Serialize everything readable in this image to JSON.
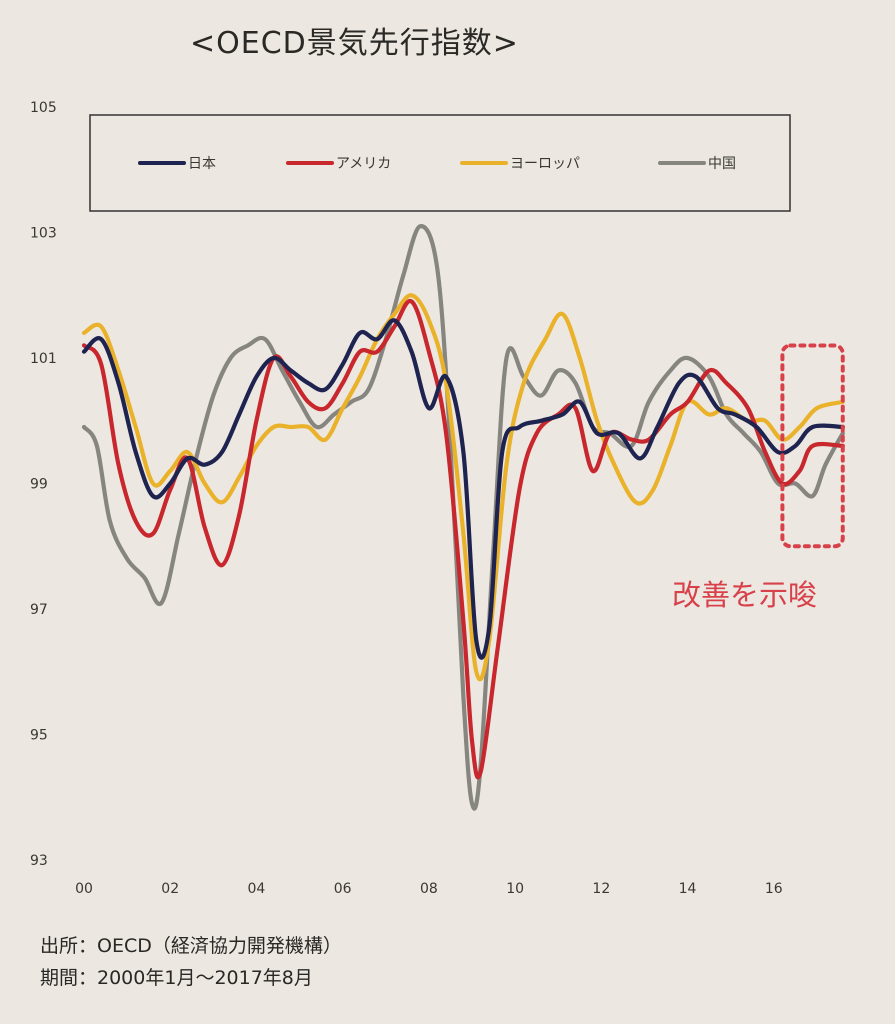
{
  "chart_data": {
    "type": "line",
    "title": "<OECD景気先行指数>",
    "xlabel": "",
    "ylabel": "",
    "xlim": [
      2000,
      2018
    ],
    "ylim": [
      93,
      105
    ],
    "yticks": [
      "105",
      "103",
      "101",
      "99",
      "97",
      "95",
      "93"
    ],
    "ytick_values": [
      105,
      103,
      101,
      99,
      97,
      95,
      93
    ],
    "xticks": [
      "00",
      "02",
      "04",
      "06",
      "08",
      "10",
      "12",
      "14",
      "16"
    ],
    "xtick_values": [
      2000,
      2002,
      2004,
      2006,
      2008,
      2010,
      2012,
      2014,
      2016
    ],
    "grid": false,
    "legend_position": "top",
    "series": [
      {
        "name": "日本",
        "color": "#1e2350",
        "points": [
          [
            2000.0,
            101.1
          ],
          [
            2000.4,
            101.3
          ],
          [
            2000.8,
            100.6
          ],
          [
            2001.2,
            99.5
          ],
          [
            2001.6,
            98.8
          ],
          [
            2002.0,
            99.0
          ],
          [
            2002.4,
            99.4
          ],
          [
            2002.8,
            99.3
          ],
          [
            2003.2,
            99.5
          ],
          [
            2003.6,
            100.1
          ],
          [
            2004.0,
            100.7
          ],
          [
            2004.4,
            101.0
          ],
          [
            2004.8,
            100.8
          ],
          [
            2005.2,
            100.6
          ],
          [
            2005.6,
            100.5
          ],
          [
            2006.0,
            100.9
          ],
          [
            2006.4,
            101.4
          ],
          [
            2006.8,
            101.3
          ],
          [
            2007.2,
            101.6
          ],
          [
            2007.6,
            101.1
          ],
          [
            2008.0,
            100.2
          ],
          [
            2008.4,
            100.7
          ],
          [
            2008.8,
            99.5
          ],
          [
            2009.1,
            96.5
          ],
          [
            2009.4,
            96.7
          ],
          [
            2009.7,
            99.5
          ],
          [
            2010.1,
            99.9
          ],
          [
            2010.6,
            100.0
          ],
          [
            2011.1,
            100.1
          ],
          [
            2011.5,
            100.3
          ],
          [
            2011.9,
            99.8
          ],
          [
            2012.4,
            99.8
          ],
          [
            2012.9,
            99.4
          ],
          [
            2013.3,
            99.9
          ],
          [
            2013.8,
            100.6
          ],
          [
            2014.2,
            100.7
          ],
          [
            2014.7,
            100.2
          ],
          [
            2015.1,
            100.1
          ],
          [
            2015.6,
            99.9
          ],
          [
            2016.1,
            99.5
          ],
          [
            2016.5,
            99.6
          ],
          [
            2016.9,
            99.9
          ],
          [
            2017.6,
            99.9
          ]
        ]
      },
      {
        "name": "アメリカ",
        "color": "#c8282d",
        "points": [
          [
            2000.0,
            101.2
          ],
          [
            2000.4,
            100.9
          ],
          [
            2000.8,
            99.3
          ],
          [
            2001.2,
            98.4
          ],
          [
            2001.6,
            98.2
          ],
          [
            2002.0,
            98.9
          ],
          [
            2002.4,
            99.4
          ],
          [
            2002.8,
            98.3
          ],
          [
            2003.2,
            97.7
          ],
          [
            2003.6,
            98.5
          ],
          [
            2004.0,
            100.0
          ],
          [
            2004.4,
            101.0
          ],
          [
            2004.8,
            100.7
          ],
          [
            2005.2,
            100.3
          ],
          [
            2005.6,
            100.2
          ],
          [
            2006.0,
            100.6
          ],
          [
            2006.4,
            101.1
          ],
          [
            2006.8,
            101.1
          ],
          [
            2007.2,
            101.5
          ],
          [
            2007.6,
            101.9
          ],
          [
            2008.0,
            101.1
          ],
          [
            2008.4,
            99.8
          ],
          [
            2008.8,
            96.8
          ],
          [
            2009.0,
            94.9
          ],
          [
            2009.2,
            94.4
          ],
          [
            2009.6,
            96.4
          ],
          [
            2010.1,
            98.9
          ],
          [
            2010.5,
            99.8
          ],
          [
            2011.0,
            100.1
          ],
          [
            2011.4,
            100.2
          ],
          [
            2011.8,
            99.2
          ],
          [
            2012.2,
            99.8
          ],
          [
            2012.7,
            99.7
          ],
          [
            2013.1,
            99.7
          ],
          [
            2013.6,
            100.1
          ],
          [
            2014.0,
            100.3
          ],
          [
            2014.5,
            100.8
          ],
          [
            2014.9,
            100.6
          ],
          [
            2015.4,
            100.2
          ],
          [
            2015.8,
            99.5
          ],
          [
            2016.2,
            99.0
          ],
          [
            2016.6,
            99.2
          ],
          [
            2016.9,
            99.6
          ],
          [
            2017.6,
            99.6
          ]
        ]
      },
      {
        "name": "ヨーロッパ",
        "color": "#eab22b",
        "points": [
          [
            2000.0,
            101.4
          ],
          [
            2000.4,
            101.5
          ],
          [
            2000.8,
            100.8
          ],
          [
            2001.2,
            99.9
          ],
          [
            2001.6,
            99.0
          ],
          [
            2002.0,
            99.2
          ],
          [
            2002.4,
            99.5
          ],
          [
            2002.8,
            99.0
          ],
          [
            2003.2,
            98.7
          ],
          [
            2003.6,
            99.1
          ],
          [
            2004.0,
            99.6
          ],
          [
            2004.4,
            99.9
          ],
          [
            2004.8,
            99.9
          ],
          [
            2005.2,
            99.9
          ],
          [
            2005.6,
            99.7
          ],
          [
            2006.0,
            100.2
          ],
          [
            2006.4,
            100.7
          ],
          [
            2006.8,
            101.3
          ],
          [
            2007.2,
            101.7
          ],
          [
            2007.6,
            102.0
          ],
          [
            2008.0,
            101.6
          ],
          [
            2008.4,
            100.6
          ],
          [
            2008.8,
            98.2
          ],
          [
            2009.1,
            96.0
          ],
          [
            2009.4,
            96.5
          ],
          [
            2009.8,
            99.3
          ],
          [
            2010.2,
            100.6
          ],
          [
            2010.7,
            101.3
          ],
          [
            2011.1,
            101.7
          ],
          [
            2011.5,
            101.0
          ],
          [
            2011.9,
            100.0
          ],
          [
            2012.3,
            99.3
          ],
          [
            2012.8,
            98.7
          ],
          [
            2013.2,
            98.9
          ],
          [
            2013.6,
            99.6
          ],
          [
            2014.0,
            100.3
          ],
          [
            2014.5,
            100.1
          ],
          [
            2014.9,
            100.2
          ],
          [
            2015.4,
            100.0
          ],
          [
            2015.8,
            100.0
          ],
          [
            2016.2,
            99.7
          ],
          [
            2016.6,
            99.9
          ],
          [
            2017.0,
            100.2
          ],
          [
            2017.6,
            100.3
          ]
        ]
      },
      {
        "name": "中国",
        "color": "#86857f",
        "points": [
          [
            2000.0,
            99.9
          ],
          [
            2000.3,
            99.6
          ],
          [
            2000.6,
            98.4
          ],
          [
            2001.0,
            97.8
          ],
          [
            2001.4,
            97.5
          ],
          [
            2001.8,
            97.1
          ],
          [
            2002.2,
            98.2
          ],
          [
            2002.6,
            99.4
          ],
          [
            2003.0,
            100.4
          ],
          [
            2003.4,
            101.0
          ],
          [
            2003.8,
            101.2
          ],
          [
            2004.2,
            101.3
          ],
          [
            2004.6,
            100.8
          ],
          [
            2005.0,
            100.3
          ],
          [
            2005.4,
            99.9
          ],
          [
            2005.8,
            100.1
          ],
          [
            2006.2,
            100.3
          ],
          [
            2006.6,
            100.5
          ],
          [
            2007.0,
            101.3
          ],
          [
            2007.4,
            102.3
          ],
          [
            2007.8,
            103.1
          ],
          [
            2008.2,
            102.4
          ],
          [
            2008.5,
            99.6
          ],
          [
            2008.8,
            95.6
          ],
          [
            2009.0,
            93.9
          ],
          [
            2009.2,
            94.5
          ],
          [
            2009.5,
            98.0
          ],
          [
            2009.8,
            101.0
          ],
          [
            2010.2,
            100.7
          ],
          [
            2010.6,
            100.4
          ],
          [
            2011.0,
            100.8
          ],
          [
            2011.4,
            100.6
          ],
          [
            2011.8,
            99.9
          ],
          [
            2012.2,
            99.8
          ],
          [
            2012.7,
            99.6
          ],
          [
            2013.1,
            100.3
          ],
          [
            2013.6,
            100.8
          ],
          [
            2014.0,
            101.0
          ],
          [
            2014.5,
            100.7
          ],
          [
            2014.9,
            100.1
          ],
          [
            2015.3,
            99.8
          ],
          [
            2015.7,
            99.5
          ],
          [
            2016.1,
            99.0
          ],
          [
            2016.5,
            99.0
          ],
          [
            2016.9,
            98.8
          ],
          [
            2017.2,
            99.3
          ],
          [
            2017.6,
            99.8
          ]
        ]
      }
    ],
    "annotations": [
      {
        "type": "dashed-box",
        "color": "#d8404a",
        "x_range": [
          2016.2,
          2017.6
        ],
        "y_range": [
          98.0,
          101.2
        ]
      },
      {
        "type": "text",
        "text": "改善を示唆",
        "color": "#d8404a"
      }
    ]
  },
  "source": {
    "line1": "出所：OECD（経済協力開発機構）",
    "line2": "期間：2000年1月～2017年8月"
  }
}
